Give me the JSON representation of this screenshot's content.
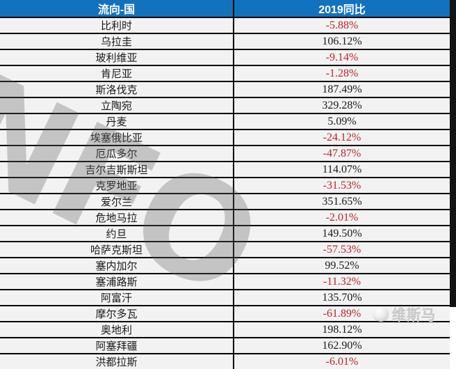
{
  "chart_data": {
    "type": "table",
    "title": "",
    "columns": [
      "流向-国",
      "2019同比"
    ],
    "rows": [
      [
        "比利时",
        "-5.88%"
      ],
      [
        "乌拉圭",
        "106.12%"
      ],
      [
        "玻利维亚",
        "-9.14%"
      ],
      [
        "肯尼亚",
        "-1.28%"
      ],
      [
        "斯洛伐克",
        "187.49%"
      ],
      [
        "立陶宛",
        "329.28%"
      ],
      [
        "丹麦",
        "5.09%"
      ],
      [
        "埃塞俄比亚",
        "-24.12%"
      ],
      [
        "厄瓜多尔",
        "-47.87%"
      ],
      [
        "吉尔吉斯斯坦",
        "114.07%"
      ],
      [
        "克罗地亚",
        "-31.53%"
      ],
      [
        "爱尔兰",
        "351.65%"
      ],
      [
        "危地马拉",
        "-2.01%"
      ],
      [
        "约旦",
        "149.50%"
      ],
      [
        "哈萨克斯坦",
        "-57.53%"
      ],
      [
        "塞内加尔",
        "99.52%"
      ],
      [
        "塞浦路斯",
        "-11.32%"
      ],
      [
        "阿富汗",
        "135.70%"
      ],
      [
        "摩尔多瓦",
        "-61.89%"
      ],
      [
        "奥地利",
        "198.12%"
      ],
      [
        "阿塞拜疆",
        "162.90%"
      ],
      [
        "洪都拉斯",
        "-6.01%"
      ]
    ],
    "notes": "negative values rendered in red, positive in black; grid lines black"
  },
  "table": {
    "header": {
      "country": "流向-国",
      "yoy": "2019同比"
    },
    "rows": [
      {
        "country": "比利时",
        "value": "-5.88%"
      },
      {
        "country": "乌拉圭",
        "value": "106.12%"
      },
      {
        "country": "玻利维亚",
        "value": "-9.14%"
      },
      {
        "country": "肯尼亚",
        "value": "-1.28%"
      },
      {
        "country": "斯洛伐克",
        "value": "187.49%"
      },
      {
        "country": "立陶宛",
        "value": "329.28%"
      },
      {
        "country": "丹麦",
        "value": "5.09%"
      },
      {
        "country": "埃塞俄比亚",
        "value": "-24.12%"
      },
      {
        "country": "厄瓜多尔",
        "value": "-47.87%"
      },
      {
        "country": "吉尔吉斯斯坦",
        "value": "114.07%"
      },
      {
        "country": "克罗地亚",
        "value": "-31.53%"
      },
      {
        "country": "爱尔兰",
        "value": "351.65%"
      },
      {
        "country": "危地马拉",
        "value": "-2.01%"
      },
      {
        "country": "约旦",
        "value": "149.50%"
      },
      {
        "country": "哈萨克斯坦",
        "value": "-57.53%"
      },
      {
        "country": "塞内加尔",
        "value": "99.52%"
      },
      {
        "country": "塞浦路斯",
        "value": "-11.32%"
      },
      {
        "country": "阿富汗",
        "value": "135.70%"
      },
      {
        "country": "摩尔多瓦",
        "value": "-61.89%"
      },
      {
        "country": "奥地利",
        "value": "198.12%"
      },
      {
        "country": "阿塞拜疆",
        "value": "162.90%"
      },
      {
        "country": "洪都拉斯",
        "value": "-6.01%"
      }
    ]
  },
  "watermarks": {
    "background_text": "INFO",
    "brand_text": "维斯马"
  },
  "colors": {
    "header_bg": "#1272BE",
    "header_text": "#FFFFFF",
    "negative_value": "#B9232E",
    "positive_value": "#1A1A1A",
    "row_bg": "#F2F2F2",
    "grid": "#000000"
  }
}
